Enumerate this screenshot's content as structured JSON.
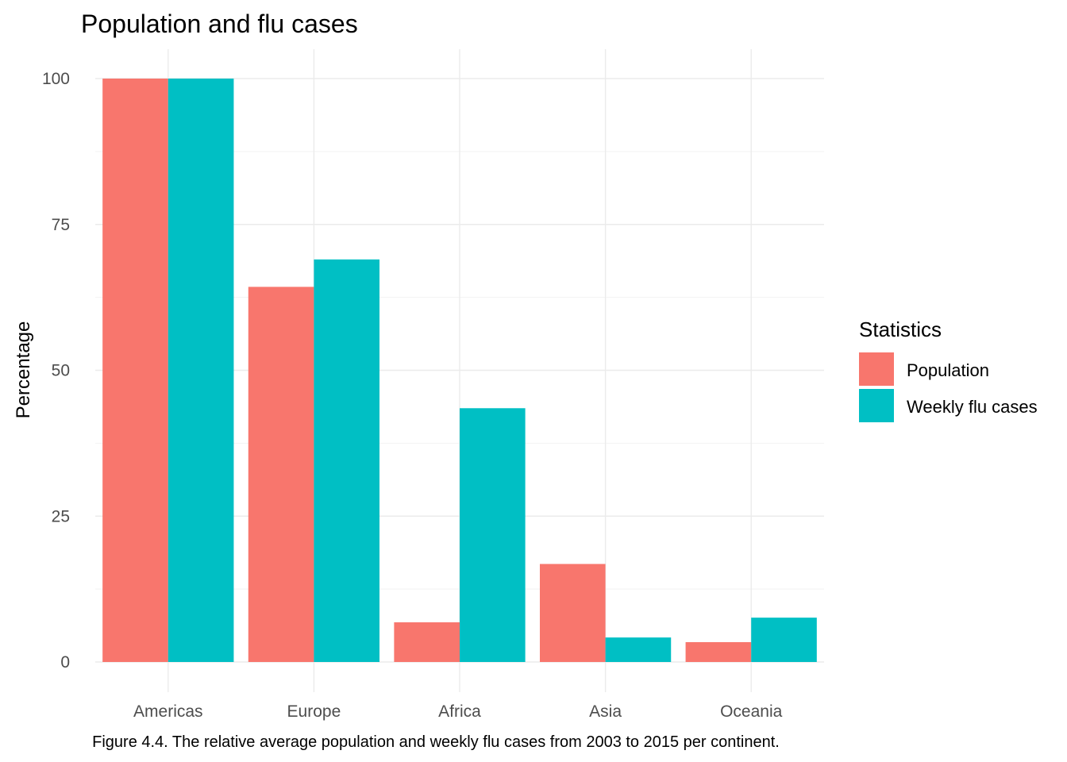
{
  "chart_data": {
    "type": "bar",
    "title": "Population and flu cases",
    "xlabel": "",
    "ylabel": "Percentage",
    "categories": [
      "Americas",
      "Europe",
      "Africa",
      "Asia",
      "Oceania"
    ],
    "series": [
      {
        "name": "Population",
        "color": "#F8766D",
        "values": [
          100,
          64.3,
          6.8,
          16.8,
          3.4
        ]
      },
      {
        "name": "Weekly flu cases",
        "color": "#00BFC4",
        "values": [
          100,
          69.0,
          43.5,
          4.2,
          7.6
        ]
      }
    ],
    "ylim": [
      0,
      100
    ],
    "yticks": [
      "0",
      "25",
      "50",
      "75",
      "100"
    ],
    "grid": true,
    "legend": {
      "title": "Statistics",
      "position": "right"
    },
    "caption": "Figure 4.4. The relative average population and weekly flu cases from 2003 to 2015 per continent."
  }
}
